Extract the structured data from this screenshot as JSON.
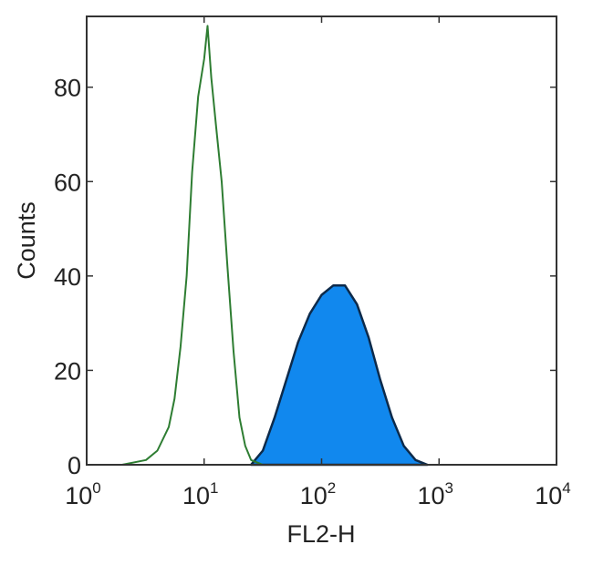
{
  "chart_data": {
    "type": "area",
    "xlabel": "FL2-H",
    "ylabel": "Counts",
    "xscale": "log",
    "xlim": [
      1,
      10000
    ],
    "ylim": [
      0,
      95
    ],
    "grid": false,
    "x_ticks": [
      {
        "base": "10",
        "exp": "0",
        "value": 1
      },
      {
        "base": "10",
        "exp": "1",
        "value": 10
      },
      {
        "base": "10",
        "exp": "2",
        "value": 100
      },
      {
        "base": "10",
        "exp": "3",
        "value": 1000
      },
      {
        "base": "10",
        "exp": "4",
        "value": 10000
      }
    ],
    "y_ticks": [
      "0",
      "20",
      "40",
      "60",
      "80"
    ],
    "series": [
      {
        "style": "outline",
        "color": "#2e7d32",
        "x": [
          2,
          3.2,
          4,
          5,
          5.6,
          6.3,
          7.1,
          7.9,
          8.9,
          10,
          10.7,
          11.5,
          12.6,
          14.1,
          15.8,
          17.8,
          20,
          22.4,
          25.1,
          31.6
        ],
        "y": [
          0,
          1,
          3,
          8,
          14,
          25,
          40,
          62,
          78,
          86,
          93,
          82,
          72,
          60,
          42,
          24,
          10,
          4,
          1,
          0
        ]
      },
      {
        "style": "filled",
        "color": "#1188ee",
        "edge_color": "#0d2a4a",
        "x": [
          25.1,
          31.6,
          39.8,
          50.1,
          63.1,
          79.4,
          100,
          126,
          158,
          200,
          251,
          316,
          398,
          501,
          631,
          794
        ],
        "y": [
          0,
          3,
          10,
          18,
          26,
          32,
          36,
          38,
          38,
          34,
          27,
          18,
          10,
          4,
          1,
          0
        ]
      }
    ]
  }
}
